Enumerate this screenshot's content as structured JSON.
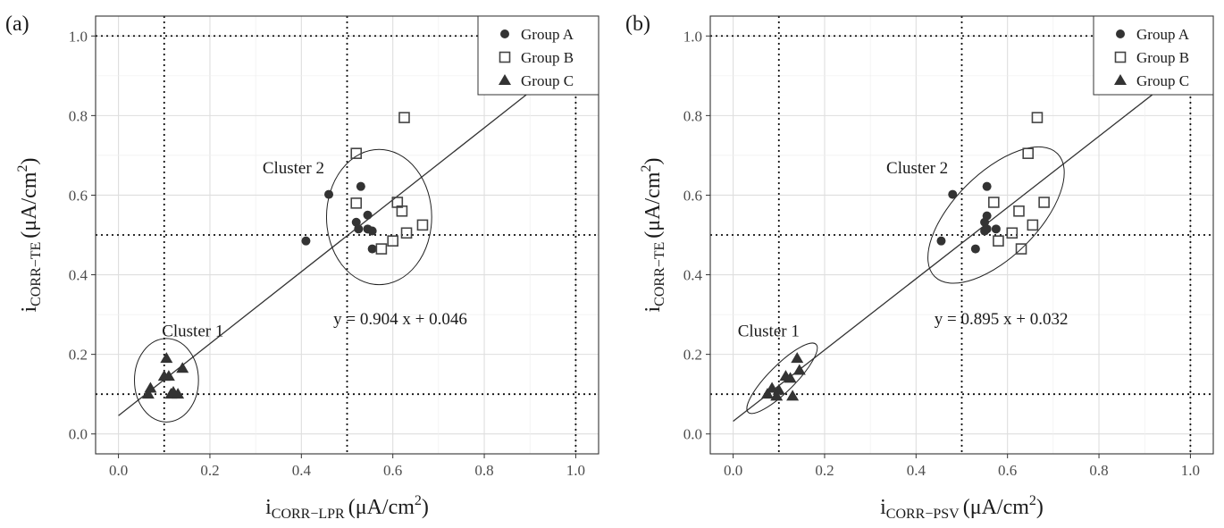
{
  "chart_data": [
    {
      "type": "scatter",
      "panel_label": "(a)",
      "xlabel": {
        "main": "i",
        "sub": "CORR−LPR",
        "unit": "(μA/cm",
        "sup": "2",
        "close": ")"
      },
      "ylabel": {
        "main": "i",
        "sub": "CORR−TE",
        "unit": "(μA/cm",
        "sup": "2",
        "close": ")"
      },
      "xlim": [
        -0.05,
        1.05
      ],
      "ylim": [
        -0.05,
        1.05
      ],
      "xticks": [
        "0.0",
        "0.2",
        "0.4",
        "0.6",
        "0.8",
        "1.0"
      ],
      "yticks": [
        "0.0",
        "0.2",
        "0.4",
        "0.6",
        "0.8",
        "1.0"
      ],
      "grid": true,
      "legend_position": "top-right",
      "legend": [
        {
          "name": "Group A",
          "marker": "circle"
        },
        {
          "name": "Group B",
          "marker": "open-square"
        },
        {
          "name": "Group C",
          "marker": "triangle"
        }
      ],
      "reference_lines": {
        "vertical": [
          0.1,
          0.5,
          1.0
        ],
        "horizontal": [
          0.1,
          0.5,
          1.0
        ]
      },
      "series": [
        {
          "name": "Group A",
          "points": [
            [
              0.41,
              0.485
            ],
            [
              0.46,
              0.602
            ],
            [
              0.52,
              0.532
            ],
            [
              0.525,
              0.515
            ],
            [
              0.53,
              0.622
            ],
            [
              0.545,
              0.55
            ],
            [
              0.545,
              0.515
            ],
            [
              0.555,
              0.51
            ],
            [
              0.555,
              0.465
            ]
          ]
        },
        {
          "name": "Group B",
          "points": [
            [
              0.52,
              0.705
            ],
            [
              0.52,
              0.58
            ],
            [
              0.575,
              0.465
            ],
            [
              0.6,
              0.485
            ],
            [
              0.61,
              0.582
            ],
            [
              0.62,
              0.56
            ],
            [
              0.625,
              0.795
            ],
            [
              0.63,
              0.505
            ],
            [
              0.665,
              0.525
            ]
          ]
        },
        {
          "name": "Group C",
          "points": [
            [
              0.065,
              0.1
            ],
            [
              0.07,
              0.115
            ],
            [
              0.1,
              0.145
            ],
            [
              0.11,
              0.145
            ],
            [
              0.105,
              0.19
            ],
            [
              0.115,
              0.1
            ],
            [
              0.12,
              0.105
            ],
            [
              0.13,
              0.1
            ],
            [
              0.14,
              0.165
            ]
          ]
        }
      ],
      "fit_line": {
        "slope": 0.904,
        "intercept": 0.046,
        "x_range": [
          0.0,
          0.905
        ],
        "label": "y = 0.904 x + 0.046",
        "label_at": [
          0.47,
          0.275
        ]
      },
      "clusters": [
        {
          "label": "Cluster 1",
          "cx": 0.105,
          "cy": 0.135,
          "rx": 0.07,
          "ry": 0.105,
          "rotation": 0,
          "label_at": [
            0.095,
            0.245
          ]
        },
        {
          "label": "Cluster 2",
          "cx": 0.57,
          "cy": 0.545,
          "rx": 0.115,
          "ry": 0.17,
          "rotation": 0,
          "label_at": [
            0.315,
            0.655
          ]
        }
      ]
    },
    {
      "type": "scatter",
      "panel_label": "(b)",
      "xlabel": {
        "main": "i",
        "sub": "CORR−PSV",
        "unit": "(μA/cm",
        "sup": "2",
        "close": ")"
      },
      "ylabel": {
        "main": "i",
        "sub": "CORR−TE",
        "unit": "(μA/cm",
        "sup": "2",
        "close": ")"
      },
      "xlim": [
        -0.05,
        1.05
      ],
      "ylim": [
        -0.05,
        1.05
      ],
      "xticks": [
        "0.0",
        "0.2",
        "0.4",
        "0.6",
        "0.8",
        "1.0"
      ],
      "yticks": [
        "0.0",
        "0.2",
        "0.4",
        "0.6",
        "0.8",
        "1.0"
      ],
      "grid": true,
      "legend_position": "top-right",
      "legend": [
        {
          "name": "Group A",
          "marker": "circle"
        },
        {
          "name": "Group B",
          "marker": "open-square"
        },
        {
          "name": "Group C",
          "marker": "triangle"
        }
      ],
      "reference_lines": {
        "vertical": [
          0.1,
          0.5,
          1.0
        ],
        "horizontal": [
          0.1,
          0.5,
          1.0
        ]
      },
      "series": [
        {
          "name": "Group A",
          "points": [
            [
              0.455,
              0.485
            ],
            [
              0.48,
              0.602
            ],
            [
              0.53,
              0.465
            ],
            [
              0.55,
              0.532
            ],
            [
              0.55,
              0.51
            ],
            [
              0.555,
              0.515
            ],
            [
              0.555,
              0.548
            ],
            [
              0.555,
              0.622
            ],
            [
              0.575,
              0.515
            ]
          ]
        },
        {
          "name": "Group B",
          "points": [
            [
              0.57,
              0.582
            ],
            [
              0.58,
              0.485
            ],
            [
              0.61,
              0.505
            ],
            [
              0.625,
              0.56
            ],
            [
              0.63,
              0.465
            ],
            [
              0.645,
              0.705
            ],
            [
              0.655,
              0.525
            ],
            [
              0.665,
              0.795
            ],
            [
              0.68,
              0.582
            ]
          ]
        },
        {
          "name": "Group C",
          "points": [
            [
              0.075,
              0.1
            ],
            [
              0.085,
              0.115
            ],
            [
              0.1,
              0.11
            ],
            [
              0.115,
              0.145
            ],
            [
              0.125,
              0.14
            ],
            [
              0.13,
              0.095
            ],
            [
              0.14,
              0.19
            ],
            [
              0.145,
              0.16
            ],
            [
              0.095,
              0.095
            ]
          ]
        }
      ],
      "fit_line": {
        "slope": 0.895,
        "intercept": 0.032,
        "x_range": [
          0.0,
          0.925
        ],
        "label": "y = 0.895 x + 0.032",
        "label_at": [
          0.44,
          0.275
        ]
      },
      "clusters": [
        {
          "label": "Cluster 1",
          "cx": 0.107,
          "cy": 0.14,
          "rx": 0.105,
          "ry": 0.033,
          "rotation": -45,
          "label_at": [
            0.01,
            0.245
          ]
        },
        {
          "label": "Cluster 2",
          "cx": 0.575,
          "cy": 0.55,
          "rx": 0.19,
          "ry": 0.105,
          "rotation": -45,
          "label_at": [
            0.335,
            0.655
          ]
        }
      ]
    }
  ]
}
